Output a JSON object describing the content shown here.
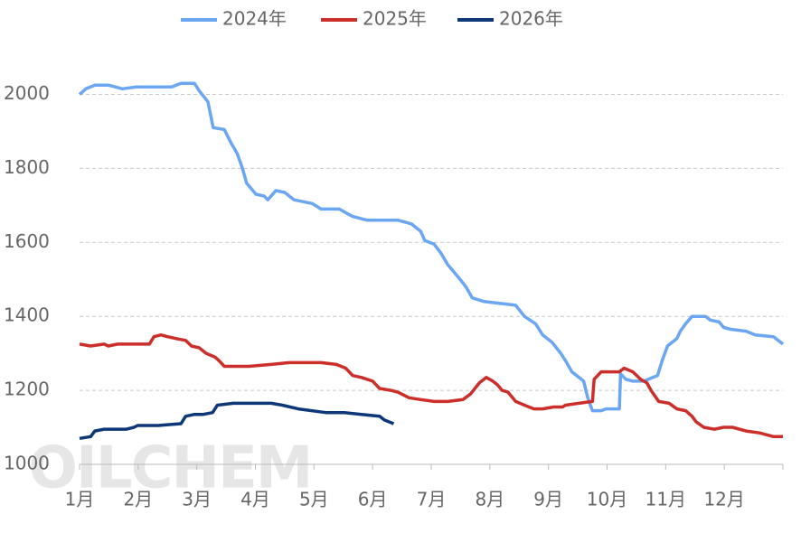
{
  "chart_data": {
    "type": "line",
    "watermark": "OILCHEM",
    "xlim": [
      1,
      13
    ],
    "ylim": [
      1000,
      2050
    ],
    "xticks": [
      {
        "value": 1,
        "label": "1月"
      },
      {
        "value": 2,
        "label": "2月"
      },
      {
        "value": 3,
        "label": "3月"
      },
      {
        "value": 4,
        "label": "4月"
      },
      {
        "value": 5,
        "label": "5月"
      },
      {
        "value": 6,
        "label": "6月"
      },
      {
        "value": 7,
        "label": "7月"
      },
      {
        "value": 8,
        "label": "8月"
      },
      {
        "value": 9,
        "label": "9月"
      },
      {
        "value": 10,
        "label": "10月"
      },
      {
        "value": 11,
        "label": "11月"
      },
      {
        "value": 12,
        "label": "12月"
      }
    ],
    "yticks": [
      1000,
      1200,
      1400,
      1600,
      1800,
      2000
    ],
    "grid": true,
    "legend": "top",
    "series": [
      {
        "name": "2024年",
        "color": "#6aa6f2",
        "x": [
          1.0,
          1.11,
          1.26,
          1.49,
          1.73,
          1.96,
          2.57,
          2.73,
          2.96,
          3.04,
          3.19,
          3.28,
          3.47,
          3.58,
          3.69,
          3.78,
          3.85,
          4.01,
          4.15,
          4.21,
          4.35,
          4.5,
          4.66,
          4.97,
          5.12,
          5.43,
          5.66,
          5.9,
          6.12,
          6.43,
          6.66,
          6.82,
          6.89,
          7.05,
          7.17,
          7.28,
          7.44,
          7.59,
          7.7,
          7.9,
          8.44,
          8.59,
          8.78,
          8.9,
          9.06,
          9.21,
          9.29,
          9.4,
          9.6,
          9.67,
          9.75,
          9.9,
          9.98,
          10.21,
          10.23,
          10.32,
          10.44,
          10.63,
          10.78,
          10.86,
          10.94,
          11.03,
          11.19,
          11.25,
          11.34,
          11.45,
          11.68,
          11.76,
          11.91,
          11.99,
          12.11,
          12.37,
          12.53,
          12.84,
          13.0
        ],
        "values": [
          2000,
          2015,
          2025,
          2025,
          2015,
          2020,
          2020,
          2030,
          2030,
          2010,
          1980,
          1910,
          1905,
          1870,
          1840,
          1800,
          1760,
          1730,
          1725,
          1715,
          1740,
          1735,
          1715,
          1705,
          1690,
          1690,
          1670,
          1660,
          1660,
          1660,
          1650,
          1630,
          1605,
          1595,
          1570,
          1540,
          1510,
          1480,
          1450,
          1440,
          1430,
          1400,
          1380,
          1350,
          1330,
          1300,
          1280,
          1250,
          1225,
          1180,
          1145,
          1145,
          1150,
          1150,
          1245,
          1230,
          1225,
          1225,
          1235,
          1240,
          1280,
          1320,
          1340,
          1360,
          1380,
          1400,
          1400,
          1390,
          1385,
          1370,
          1365,
          1360,
          1350,
          1345,
          1325
        ]
      },
      {
        "name": "2025年",
        "color": "#cc2f2a",
        "x": [
          1.0,
          1.19,
          1.42,
          1.49,
          1.65,
          2.19,
          2.27,
          2.39,
          2.5,
          2.65,
          2.81,
          2.91,
          3.04,
          3.16,
          3.31,
          3.38,
          3.47,
          3.69,
          3.89,
          4.27,
          4.58,
          4.89,
          5.12,
          5.38,
          5.54,
          5.66,
          5.81,
          6.0,
          6.12,
          6.31,
          6.43,
          6.62,
          6.82,
          7.05,
          7.28,
          7.54,
          7.67,
          7.82,
          7.94,
          8.05,
          8.13,
          8.21,
          8.31,
          8.44,
          8.59,
          8.75,
          8.9,
          9.09,
          9.24,
          9.29,
          9.52,
          9.75,
          9.78,
          9.9,
          10.21,
          10.29,
          10.44,
          10.57,
          10.68,
          10.75,
          10.88,
          11.06,
          11.19,
          11.34,
          11.45,
          11.52,
          11.65,
          11.83,
          11.99,
          12.14,
          12.37,
          12.6,
          12.84,
          13.0
        ],
        "values": [
          1325,
          1320,
          1325,
          1320,
          1325,
          1325,
          1345,
          1350,
          1345,
          1340,
          1335,
          1320,
          1315,
          1300,
          1290,
          1280,
          1265,
          1265,
          1265,
          1270,
          1275,
          1275,
          1275,
          1270,
          1260,
          1240,
          1235,
          1225,
          1205,
          1200,
          1195,
          1180,
          1175,
          1170,
          1170,
          1175,
          1190,
          1220,
          1235,
          1225,
          1215,
          1200,
          1195,
          1170,
          1160,
          1150,
          1150,
          1155,
          1155,
          1160,
          1165,
          1170,
          1230,
          1250,
          1250,
          1260,
          1250,
          1230,
          1220,
          1200,
          1170,
          1165,
          1150,
          1145,
          1130,
          1115,
          1100,
          1095,
          1100,
          1100,
          1090,
          1085,
          1075,
          1075
        ]
      },
      {
        "name": "2026年",
        "color": "#0e3778",
        "x": [
          1.0,
          1.19,
          1.26,
          1.42,
          1.8,
          1.93,
          1.99,
          2.34,
          2.73,
          2.81,
          2.96,
          3.11,
          3.27,
          3.35,
          3.62,
          4.27,
          4.46,
          4.73,
          5.2,
          5.51,
          5.81,
          6.12,
          6.2,
          6.36
        ],
        "values": [
          1070,
          1075,
          1090,
          1095,
          1095,
          1100,
          1105,
          1105,
          1110,
          1130,
          1135,
          1135,
          1140,
          1160,
          1165,
          1165,
          1160,
          1150,
          1140,
          1140,
          1135,
          1130,
          1120,
          1110
        ]
      }
    ]
  }
}
